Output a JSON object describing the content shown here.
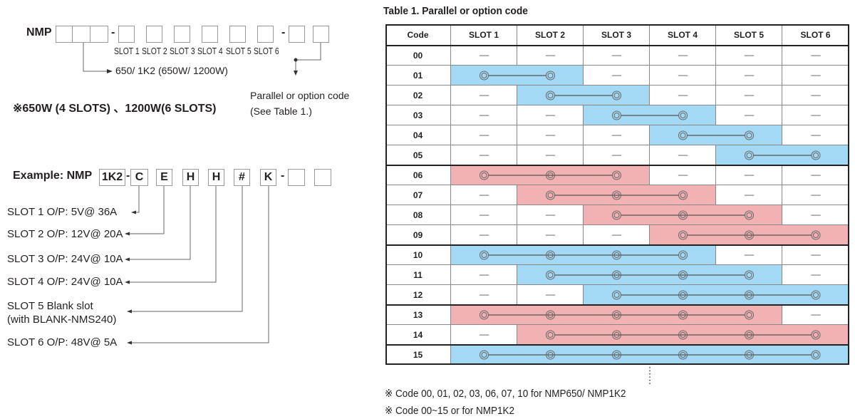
{
  "top_diagram": {
    "prefix": "NMP",
    "slot_labels": [
      "SLOT 1",
      "SLOT 2",
      "SLOT 3",
      "SLOT 4",
      "SLOT 5",
      "SLOT 6"
    ],
    "power_note": "650/ 1K2 (650W/ 1200W)",
    "slots_note": "※650W (4 SLOTS) 、1200W(6 SLOTS)",
    "option_note_line1": "Parallel or option code",
    "option_note_line2": "(See Table 1.)"
  },
  "example": {
    "label": "Example: NMP",
    "power_code": "1K2",
    "slot_codes": [
      "C",
      "E",
      "H",
      "H",
      "#",
      "K"
    ],
    "descriptions": [
      "SLOT 1  O/P: 5V@ 36A",
      "SLOT 2  O/P: 12V@ 20A",
      "SLOT 3  O/P: 24V@ 10A",
      "SLOT 4  O/P: 24V@ 10A",
      "SLOT 5  Blank slot",
      "(with BLANK-NMS240)",
      "SLOT 6  O/P: 48V@ 5A"
    ]
  },
  "table": {
    "title": "Table 1. Parallel or option code",
    "headers": [
      "Code",
      "SLOT 1",
      "SLOT 2",
      "SLOT 3",
      "SLOT 4",
      "SLOT 5",
      "SLOT 6"
    ],
    "empty_mark": "-----",
    "colors": {
      "blue": "#a3d9f5",
      "pink": "#f2b1b3"
    },
    "rows": [
      {
        "code": "00",
        "span": null
      },
      {
        "code": "01",
        "span": [
          1,
          2
        ],
        "color": "blue"
      },
      {
        "code": "02",
        "span": [
          2,
          3
        ],
        "color": "blue"
      },
      {
        "code": "03",
        "span": [
          3,
          4
        ],
        "color": "blue"
      },
      {
        "code": "04",
        "span": [
          4,
          5
        ],
        "color": "blue"
      },
      {
        "code": "05",
        "span": [
          5,
          6
        ],
        "color": "blue"
      },
      {
        "code": "06",
        "span": [
          1,
          3
        ],
        "color": "pink"
      },
      {
        "code": "07",
        "span": [
          2,
          4
        ],
        "color": "pink"
      },
      {
        "code": "08",
        "span": [
          3,
          5
        ],
        "color": "pink"
      },
      {
        "code": "09",
        "span": [
          4,
          6
        ],
        "color": "pink"
      },
      {
        "code": "10",
        "span": [
          1,
          4
        ],
        "color": "blue"
      },
      {
        "code": "11",
        "span": [
          2,
          5
        ],
        "color": "blue"
      },
      {
        "code": "12",
        "span": [
          3,
          6
        ],
        "color": "blue"
      },
      {
        "code": "13",
        "span": [
          1,
          5
        ],
        "color": "pink"
      },
      {
        "code": "14",
        "span": [
          2,
          6
        ],
        "color": "pink"
      },
      {
        "code": "15",
        "span": [
          1,
          6
        ],
        "color": "blue"
      }
    ],
    "group_ends": [
      "05",
      "09",
      "12",
      "14"
    ]
  },
  "footnotes": [
    "※  Code 00, 01, 02, 03, 06, 07, 10 for NMP650/ NMP1K2",
    "※  Code 00~15 or for NMP1K2"
  ]
}
